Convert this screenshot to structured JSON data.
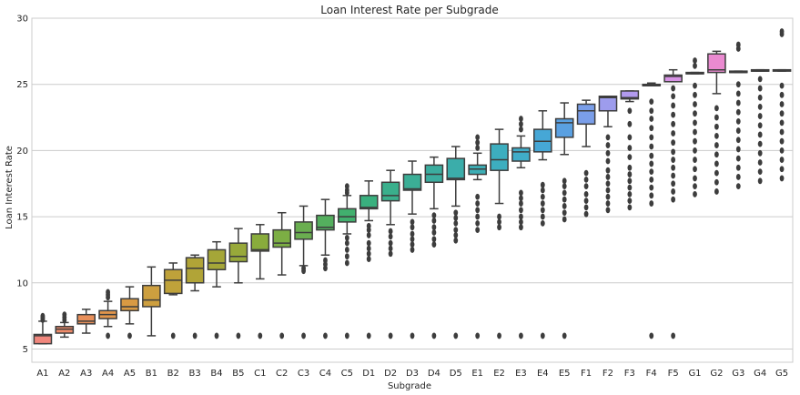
{
  "chart_data": {
    "type": "box",
    "title": "Loan Interest Rate per Subgrade",
    "xlabel": "Subgrade",
    "ylabel": "Loan Interest Rate",
    "ylim": [
      4,
      30
    ],
    "yticks": [
      5,
      10,
      15,
      20,
      25,
      30
    ],
    "grid": "horizontal",
    "categories": [
      "A1",
      "A2",
      "A3",
      "A4",
      "A5",
      "B1",
      "B2",
      "B3",
      "B4",
      "B5",
      "C1",
      "C2",
      "C3",
      "C4",
      "C5",
      "D1",
      "D2",
      "D3",
      "D4",
      "D5",
      "E1",
      "E2",
      "E3",
      "E4",
      "E5",
      "F1",
      "F2",
      "F3",
      "F4",
      "F5",
      "G1",
      "G2",
      "G3",
      "G4",
      "G5"
    ],
    "boxes": [
      {
        "min": 5.4,
        "q1": 5.4,
        "median": 6.0,
        "q3": 6.1,
        "max": 7.1,
        "outliers": [
          7.2,
          7.3,
          7.4,
          7.5
        ]
      },
      {
        "min": 5.9,
        "q1": 6.2,
        "median": 6.5,
        "q3": 6.7,
        "max": 7.0,
        "outliers": [
          7.2,
          7.4,
          7.6
        ]
      },
      {
        "min": 6.2,
        "q1": 6.9,
        "median": 7.1,
        "q3": 7.6,
        "max": 8.0,
        "outliers": []
      },
      {
        "min": 6.7,
        "q1": 7.3,
        "median": 7.6,
        "q3": 7.9,
        "max": 8.6,
        "outliers": [
          6.0,
          8.9,
          9.1,
          9.3
        ]
      },
      {
        "min": 6.9,
        "q1": 7.9,
        "median": 8.2,
        "q3": 8.8,
        "max": 9.7,
        "outliers": [
          6.0
        ]
      },
      {
        "min": 6.0,
        "q1": 8.2,
        "median": 8.7,
        "q3": 9.8,
        "max": 11.2,
        "outliers": []
      },
      {
        "min": 9.1,
        "q1": 9.2,
        "median": 10.2,
        "q3": 11.0,
        "max": 11.5,
        "outliers": [
          6.0
        ]
      },
      {
        "min": 9.4,
        "q1": 10.0,
        "median": 11.1,
        "q3": 11.9,
        "max": 12.1,
        "outliers": [
          6.0
        ]
      },
      {
        "min": 9.7,
        "q1": 11.0,
        "median": 11.5,
        "q3": 12.5,
        "max": 13.1,
        "outliers": [
          6.0
        ]
      },
      {
        "min": 10.0,
        "q1": 11.6,
        "median": 12.0,
        "q3": 13.0,
        "max": 14.1,
        "outliers": [
          6.0
        ]
      },
      {
        "min": 10.3,
        "q1": 12.4,
        "median": 12.5,
        "q3": 13.7,
        "max": 14.4,
        "outliers": [
          6.0
        ]
      },
      {
        "min": 10.6,
        "q1": 12.7,
        "median": 13.0,
        "q3": 14.0,
        "max": 15.3,
        "outliers": [
          6.0
        ]
      },
      {
        "min": 11.3,
        "q1": 13.3,
        "median": 13.8,
        "q3": 14.6,
        "max": 15.8,
        "outliers": [
          6.0,
          10.9,
          11.1
        ]
      },
      {
        "min": 12.1,
        "q1": 14.0,
        "median": 14.2,
        "q3": 15.1,
        "max": 16.3,
        "outliers": [
          6.0,
          11.1,
          11.4,
          11.7
        ]
      },
      {
        "min": 13.7,
        "q1": 14.6,
        "median": 15.0,
        "q3": 15.6,
        "max": 16.6,
        "outliers": [
          6.0,
          11.5,
          12.0,
          12.5,
          13.0,
          13.4,
          16.8,
          17.0,
          17.3
        ]
      },
      {
        "min": 14.7,
        "q1": 15.6,
        "median": 15.7,
        "q3": 16.6,
        "max": 17.7,
        "outliers": [
          6.0,
          11.8,
          12.2,
          12.6,
          13.0,
          13.6,
          14.0,
          14.3
        ]
      },
      {
        "min": 14.4,
        "q1": 16.2,
        "median": 16.6,
        "q3": 17.6,
        "max": 18.5,
        "outliers": [
          6.0,
          12.2,
          12.6,
          13.0,
          13.5,
          13.9
        ]
      },
      {
        "min": 15.2,
        "q1": 17.0,
        "median": 17.1,
        "q3": 18.2,
        "max": 19.2,
        "outliers": [
          6.0,
          12.5,
          12.9,
          13.3,
          13.7,
          14.2,
          14.6
        ]
      },
      {
        "min": 15.6,
        "q1": 17.6,
        "median": 18.2,
        "q3": 18.9,
        "max": 19.5,
        "outliers": [
          6.0,
          12.9,
          13.3,
          13.8,
          14.2,
          14.7,
          15.1
        ]
      },
      {
        "min": 15.8,
        "q1": 17.8,
        "median": 17.9,
        "q3": 19.4,
        "max": 20.3,
        "outliers": [
          6.0,
          13.2,
          13.6,
          14.0,
          14.5,
          14.9,
          15.3
        ]
      },
      {
        "min": 17.8,
        "q1": 18.2,
        "median": 18.6,
        "q3": 18.9,
        "max": 19.8,
        "outliers": [
          6.0,
          14.0,
          14.5,
          15.0,
          15.5,
          16.0,
          16.5,
          20.2,
          20.6,
          21.0
        ]
      },
      {
        "min": 16.0,
        "q1": 18.5,
        "median": 19.3,
        "q3": 20.5,
        "max": 21.6,
        "outliers": [
          6.0,
          14.2,
          14.6,
          15.0
        ]
      },
      {
        "min": 18.7,
        "q1": 19.2,
        "median": 19.9,
        "q3": 20.2,
        "max": 21.1,
        "outliers": [
          6.0,
          14.2,
          14.6,
          15.0,
          15.5,
          16.0,
          16.4,
          16.8,
          21.6,
          22.0,
          22.4
        ]
      },
      {
        "min": 19.3,
        "q1": 19.9,
        "median": 20.7,
        "q3": 21.6,
        "max": 23.0,
        "outliers": [
          6.0,
          14.5,
          15.0,
          15.5,
          16.0,
          16.5,
          17.0,
          17.4
        ]
      },
      {
        "min": 19.7,
        "q1": 21.0,
        "median": 22.1,
        "q3": 22.4,
        "max": 23.6,
        "outliers": [
          6.0,
          14.8,
          15.3,
          15.8,
          16.3,
          16.8,
          17.3,
          17.7
        ]
      },
      {
        "min": 20.3,
        "q1": 22.0,
        "median": 23.0,
        "q3": 23.5,
        "max": 23.8,
        "outliers": [
          15.2,
          15.7,
          16.2,
          16.7,
          17.3,
          17.8,
          18.3
        ]
      },
      {
        "min": 21.8,
        "q1": 23.0,
        "median": 24.0,
        "q3": 24.1,
        "max": 24.1,
        "outliers": [
          15.5,
          16.0,
          16.5,
          17.0,
          17.5,
          18.0,
          18.5,
          19.2,
          19.8,
          20.4,
          21.0
        ]
      },
      {
        "min": 23.7,
        "q1": 23.9,
        "median": 24.0,
        "q3": 24.5,
        "max": 24.5,
        "outliers": [
          15.7,
          16.2,
          16.7,
          17.2,
          17.7,
          18.2,
          18.7,
          19.5,
          20.2,
          21.0,
          22.0,
          23.0
        ]
      },
      {
        "min": 24.9,
        "q1": 24.9,
        "median": 24.9,
        "q3": 25.0,
        "max": 25.1,
        "outliers": [
          6.0,
          16.0,
          16.6,
          17.2,
          17.8,
          18.4,
          19.0,
          19.6,
          20.3,
          21.0,
          21.7,
          22.4,
          23.0,
          23.7
        ]
      },
      {
        "min": 25.2,
        "q1": 25.2,
        "median": 25.6,
        "q3": 25.7,
        "max": 26.1,
        "outliers": [
          6.0,
          16.3,
          16.9,
          17.5,
          18.1,
          18.7,
          19.3,
          19.9,
          20.6,
          21.3,
          22.0,
          22.7,
          23.4,
          24.1,
          24.7
        ]
      },
      {
        "min": 25.8,
        "q1": 25.8,
        "median": 25.8,
        "q3": 25.9,
        "max": 25.9,
        "outliers": [
          16.7,
          17.3,
          17.9,
          18.6,
          19.3,
          20.0,
          20.7,
          21.4,
          22.1,
          22.8,
          23.5,
          24.2,
          24.9,
          26.4,
          26.8
        ]
      },
      {
        "min": 24.3,
        "q1": 25.9,
        "median": 26.1,
        "q3": 27.3,
        "max": 27.5,
        "outliers": [
          16.9,
          17.6,
          18.3,
          19.0,
          19.7,
          20.4,
          21.1,
          21.8,
          22.5,
          23.2
        ]
      },
      {
        "min": 25.9,
        "q1": 25.9,
        "median": 25.9,
        "q3": 26.0,
        "max": 26.0,
        "outliers": [
          17.3,
          18.0,
          18.7,
          19.4,
          20.1,
          20.8,
          21.5,
          22.2,
          22.9,
          23.6,
          24.3,
          25.0,
          27.7,
          28.0
        ]
      },
      {
        "min": 26.0,
        "q1": 26.0,
        "median": 26.0,
        "q3": 26.1,
        "max": 26.1,
        "outliers": [
          17.7,
          18.4,
          19.1,
          19.8,
          20.5,
          21.2,
          21.9,
          22.6,
          23.3,
          24.0,
          24.7,
          25.4
        ]
      },
      {
        "min": 26.0,
        "q1": 26.0,
        "median": 26.1,
        "q3": 26.1,
        "max": 26.1,
        "outliers": [
          17.9,
          18.6,
          19.3,
          20.0,
          20.7,
          21.4,
          22.1,
          22.8,
          23.5,
          24.2,
          24.9,
          28.8,
          29.0
        ]
      }
    ],
    "colors": [
      "#f1877d",
      "#ee8b6a",
      "#e98f59",
      "#e2964c",
      "#d99a43",
      "#cd9f3f",
      "#bfa23a",
      "#b1a437",
      "#a5a638",
      "#98a93a",
      "#89ac3c",
      "#7cae44",
      "#6aae50",
      "#54af5e",
      "#41b06e",
      "#39b07e",
      "#3aaf8c",
      "#3bae96",
      "#3bad9f",
      "#3badaa",
      "#3caeb5",
      "#3daebf",
      "#40adc9",
      "#46a7d6",
      "#5aa0e1",
      "#7a9ee9",
      "#9d9ced",
      "#b29aee",
      "#c796ee",
      "#d792e5",
      "#e390dc",
      "#ea8ad0",
      "#ee8bc4",
      "#f08ab7",
      "#f28aa8"
    ]
  }
}
